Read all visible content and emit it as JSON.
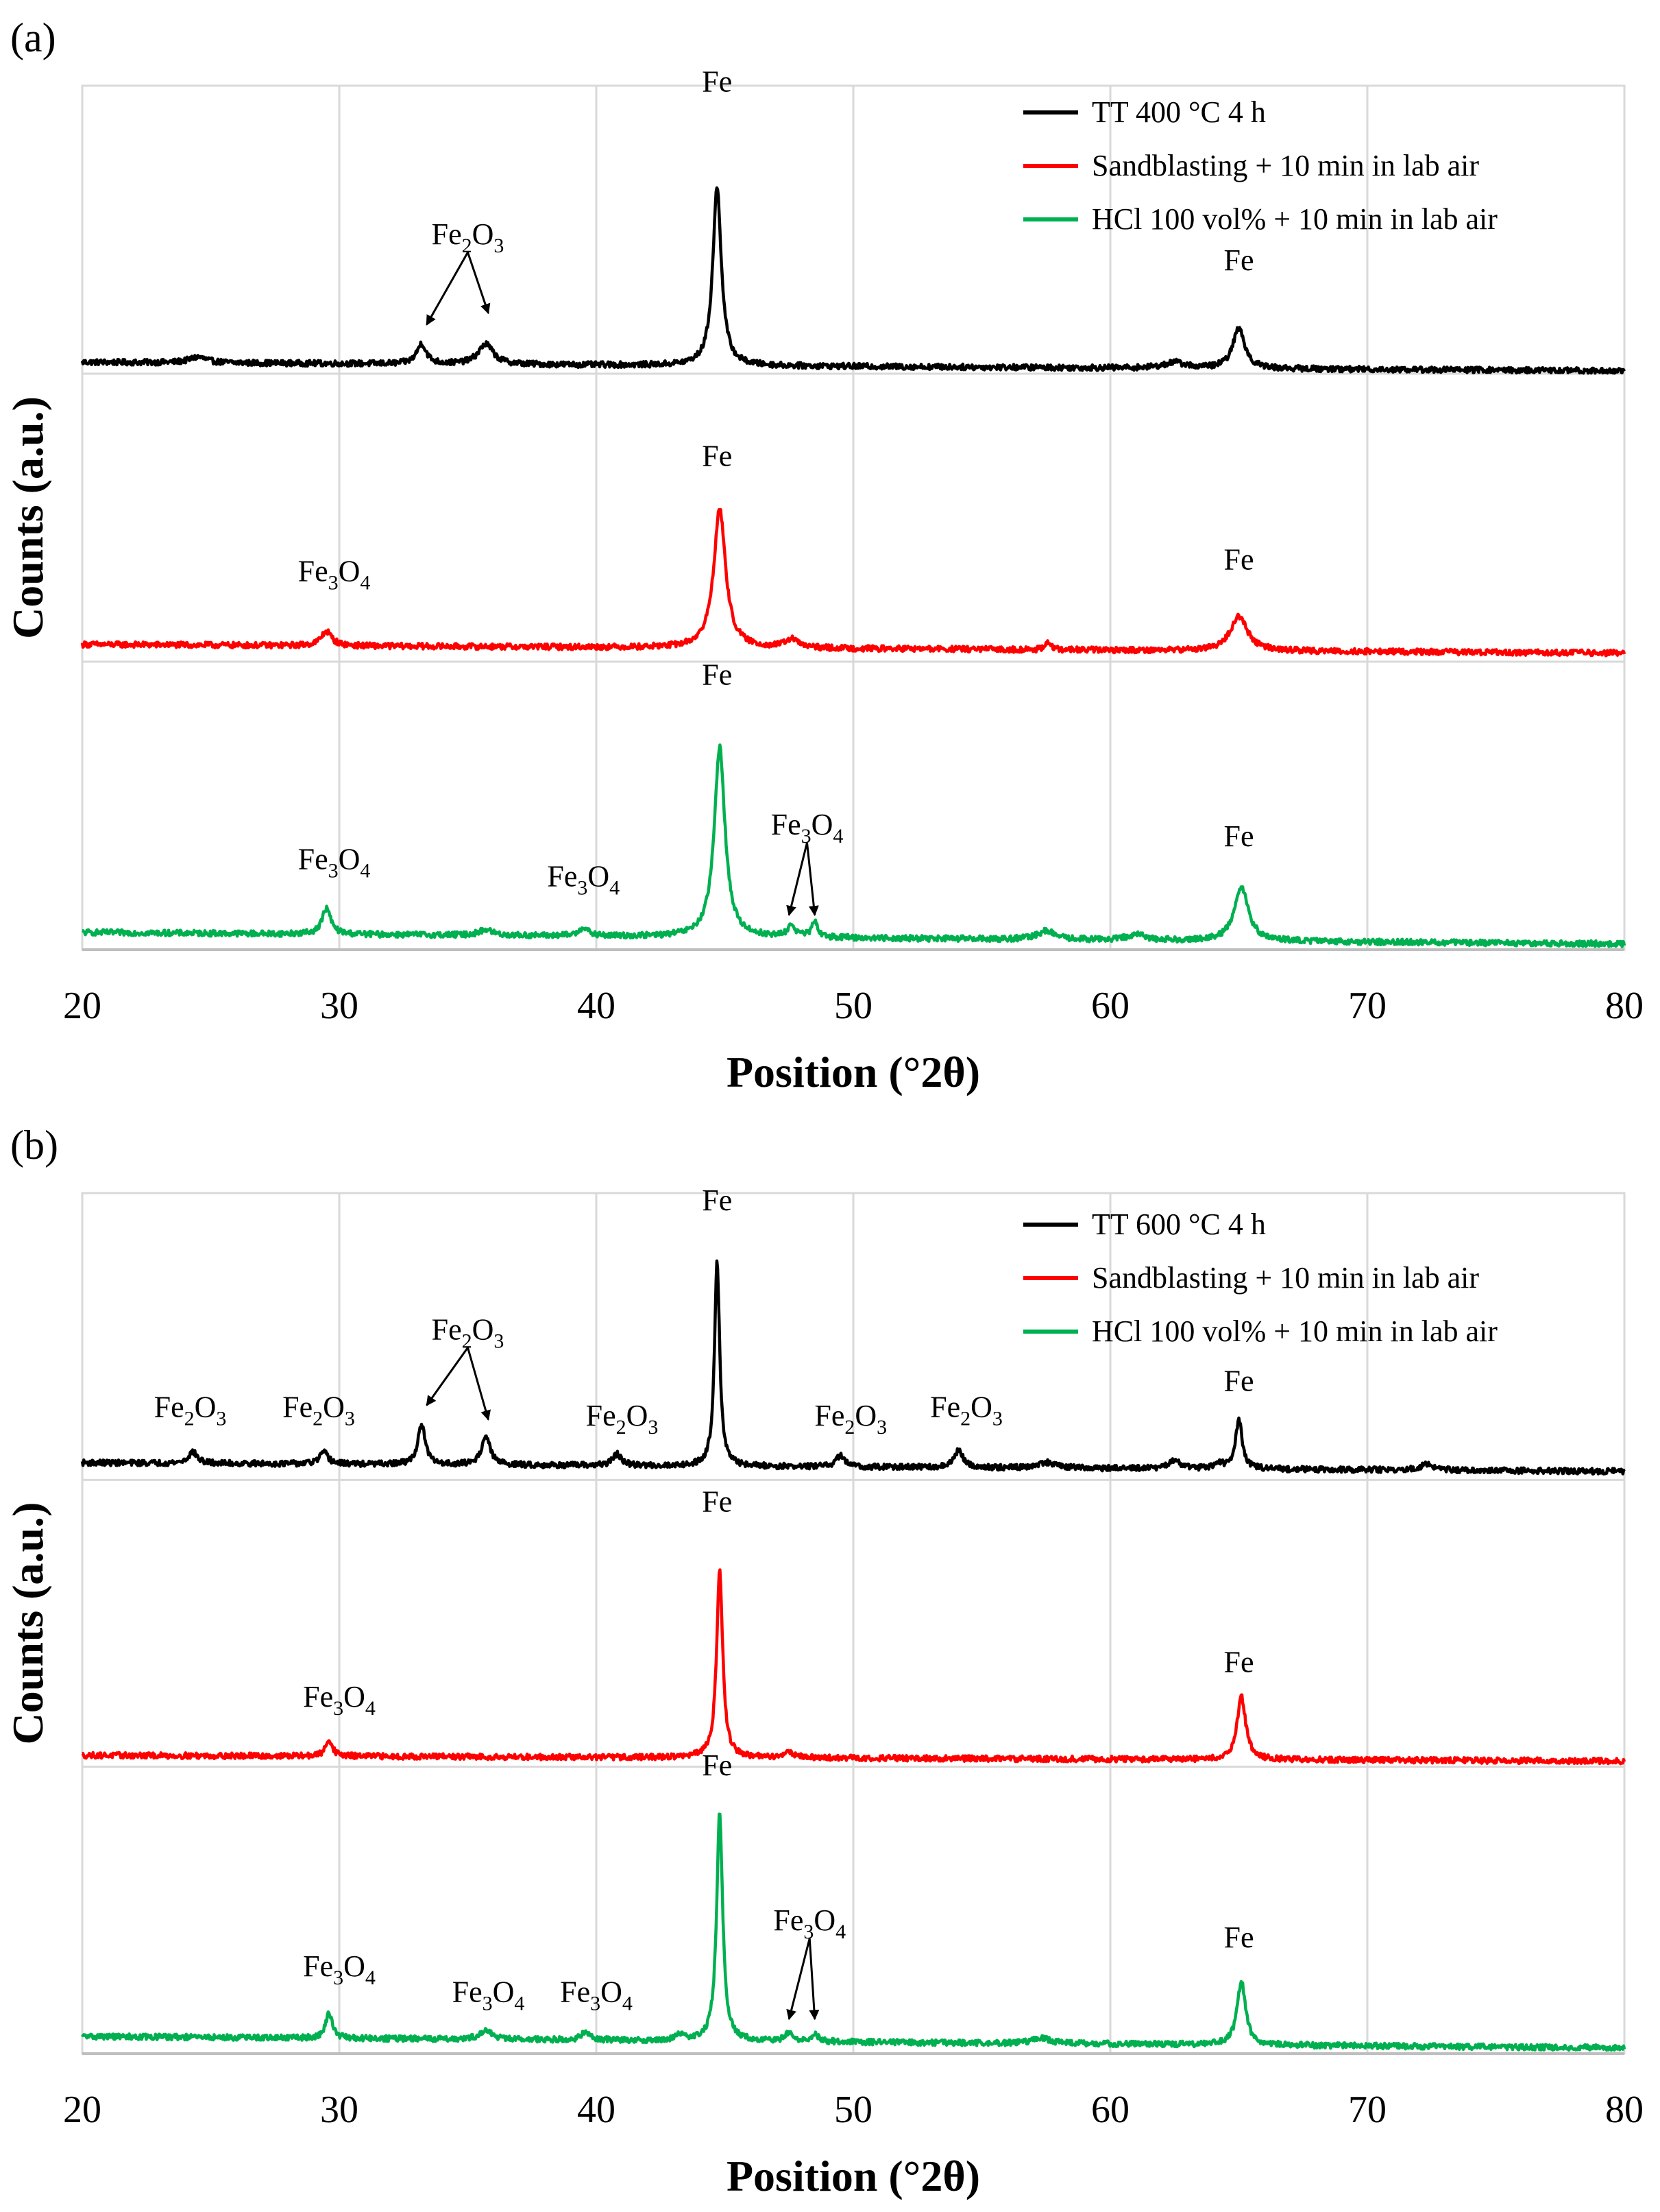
{
  "chart_data": [
    {
      "type": "line",
      "panel_label": "(a)",
      "xlabel": "Position (°2θ)",
      "ylabel": "Counts (a.u.)",
      "xlim": [
        20,
        80
      ],
      "xticks": [
        20,
        30,
        40,
        50,
        60,
        70,
        80
      ],
      "grid": true,
      "legend_position": "top-right",
      "series": [
        {
          "name": "TT 400 °C 4 h",
          "color": "#000000",
          "baseline": 0.04,
          "slope": -0.03,
          "noise": 0.02,
          "peaks": [
            [
              33.2,
              0.07,
              0.22
            ],
            [
              35.7,
              0.07,
              0.35
            ],
            [
              24.5,
              0.02,
              0.4
            ],
            [
              44.7,
              0.62,
              0.2
            ],
            [
              65.0,
              0.14,
              0.28
            ],
            [
              62.5,
              0.02,
              0.5
            ]
          ]
        },
        {
          "name": "Sandblasting + 10 min in lab air",
          "color": "#ff0000",
          "baseline": 0.06,
          "slope": -0.03,
          "noise": 0.02,
          "peaks": [
            [
              29.5,
              0.05,
              0.25
            ],
            [
              44.8,
              0.48,
              0.28
            ],
            [
              47.6,
              0.03,
              0.3
            ],
            [
              57.6,
              0.03,
              0.1
            ],
            [
              65.0,
              0.12,
              0.4
            ]
          ]
        },
        {
          "name": "HCl 100 vol% + 10 min in lab air",
          "color": "#00b050",
          "baseline": 0.06,
          "slope": -0.04,
          "noise": 0.02,
          "peaks": [
            [
              29.5,
              0.09,
              0.2
            ],
            [
              35.7,
              0.02,
              0.3
            ],
            [
              39.5,
              0.03,
              0.2
            ],
            [
              44.8,
              0.66,
              0.25
            ],
            [
              47.6,
              0.04,
              0.18
            ],
            [
              48.5,
              0.05,
              0.15
            ],
            [
              57.5,
              0.03,
              0.4
            ],
            [
              61.0,
              0.02,
              0.4
            ],
            [
              65.1,
              0.19,
              0.32
            ]
          ]
        }
      ],
      "annotations": [
        {
          "band": 0,
          "x": 44.7,
          "y": 0.98,
          "base": "Fe"
        },
        {
          "band": 0,
          "x": 65.0,
          "y": 0.36,
          "base": "Fe"
        },
        {
          "band": 0,
          "x": 35.0,
          "y": 0.45,
          "base": "Fe",
          "sub": "2",
          "base2": "O",
          "sub2": "3",
          "arrows": [
            [
              33.4,
              0.17
            ],
            [
              35.8,
              0.21
            ]
          ]
        },
        {
          "band": 1,
          "x": 44.7,
          "y": 0.68,
          "base": "Fe"
        },
        {
          "band": 1,
          "x": 65.0,
          "y": 0.32,
          "base": "Fe"
        },
        {
          "band": 1,
          "x": 29.8,
          "y": 0.28,
          "base": "Fe",
          "sub": "3",
          "base2": "O",
          "sub2": "4"
        },
        {
          "band": 2,
          "x": 44.7,
          "y": 0.92,
          "base": "Fe"
        },
        {
          "band": 2,
          "x": 65.0,
          "y": 0.36,
          "base": "Fe"
        },
        {
          "band": 2,
          "x": 29.8,
          "y": 0.28,
          "base": "Fe",
          "sub": "3",
          "base2": "O",
          "sub2": "4"
        },
        {
          "band": 2,
          "x": 39.5,
          "y": 0.22,
          "base": "Fe",
          "sub": "3",
          "base2": "O",
          "sub2": "4"
        },
        {
          "band": 2,
          "x": 48.2,
          "y": 0.4,
          "base": "Fe",
          "sub": "3",
          "base2": "O",
          "sub2": "4",
          "arrows": [
            [
              47.5,
              0.12
            ],
            [
              48.5,
              0.12
            ]
          ]
        }
      ]
    },
    {
      "type": "line",
      "panel_label": "(b)",
      "xlabel": "Position (°2θ)",
      "ylabel": "Counts (a.u.)",
      "xlim": [
        20,
        80
      ],
      "xticks": [
        20,
        30,
        40,
        50,
        60,
        70,
        80
      ],
      "grid": true,
      "legend_position": "top-right",
      "series": [
        {
          "name": "TT 600 °C 4 h",
          "color": "#000000",
          "baseline": 0.06,
          "slope": -0.03,
          "noise": 0.02,
          "peaks": [
            [
              24.3,
              0.04,
              0.2
            ],
            [
              29.4,
              0.04,
              0.2
            ],
            [
              33.2,
              0.14,
              0.17
            ],
            [
              35.7,
              0.1,
              0.2
            ],
            [
              40.8,
              0.04,
              0.2
            ],
            [
              44.7,
              0.72,
              0.12
            ],
            [
              49.5,
              0.04,
              0.2
            ],
            [
              54.1,
              0.06,
              0.2
            ],
            [
              57.5,
              0.02,
              0.4
            ],
            [
              62.5,
              0.03,
              0.25
            ],
            [
              64.2,
              0.02,
              0.2
            ],
            [
              65.0,
              0.17,
              0.16
            ],
            [
              72.3,
              0.02,
              0.3
            ]
          ]
        },
        {
          "name": "Sandblasting + 10 min in lab air",
          "color": "#ff0000",
          "baseline": 0.04,
          "slope": -0.02,
          "noise": 0.02,
          "peaks": [
            [
              29.6,
              0.06,
              0.15
            ],
            [
              44.8,
              0.66,
              0.14
            ],
            [
              47.5,
              0.02,
              0.25
            ],
            [
              65.1,
              0.22,
              0.2
            ]
          ]
        },
        {
          "name": "HCl 100 vol% + 10 min in lab air",
          "color": "#00b050",
          "baseline": 0.06,
          "slope": -0.04,
          "noise": 0.02,
          "peaks": [
            [
              29.6,
              0.09,
              0.15
            ],
            [
              35.7,
              0.03,
              0.3
            ],
            [
              39.6,
              0.03,
              0.2
            ],
            [
              43.3,
              0.02,
              0.2
            ],
            [
              44.8,
              0.8,
              0.14
            ],
            [
              47.5,
              0.03,
              0.18
            ],
            [
              48.5,
              0.03,
              0.15
            ],
            [
              57.3,
              0.02,
              0.4
            ],
            [
              65.1,
              0.22,
              0.2
            ]
          ]
        }
      ],
      "annotations": [
        {
          "band": 0,
          "x": 44.7,
          "y": 0.94,
          "base": "Fe"
        },
        {
          "band": 0,
          "x": 65.0,
          "y": 0.31,
          "base": "Fe"
        },
        {
          "band": 0,
          "x": 24.2,
          "y": 0.22,
          "base": "Fe",
          "sub": "2",
          "base2": "O",
          "sub2": "3"
        },
        {
          "band": 0,
          "x": 29.2,
          "y": 0.22,
          "base": "Fe",
          "sub": "2",
          "base2": "O",
          "sub2": "3"
        },
        {
          "band": 0,
          "x": 35.0,
          "y": 0.49,
          "base": "Fe",
          "sub": "2",
          "base2": "O",
          "sub2": "3",
          "arrows": [
            [
              33.4,
              0.26
            ],
            [
              35.8,
              0.21
            ]
          ]
        },
        {
          "band": 0,
          "x": 41.0,
          "y": 0.19,
          "base": "Fe",
          "sub": "2",
          "base2": "O",
          "sub2": "3"
        },
        {
          "band": 0,
          "x": 49.9,
          "y": 0.19,
          "base": "Fe",
          "sub": "2",
          "base2": "O",
          "sub2": "3"
        },
        {
          "band": 0,
          "x": 54.4,
          "y": 0.22,
          "base": "Fe",
          "sub": "2",
          "base2": "O",
          "sub2": "3"
        },
        {
          "band": 1,
          "x": 44.7,
          "y": 0.89,
          "base": "Fe"
        },
        {
          "band": 1,
          "x": 65.0,
          "y": 0.33,
          "base": "Fe"
        },
        {
          "band": 1,
          "x": 30.0,
          "y": 0.21,
          "base": "Fe",
          "sub": "3",
          "base2": "O",
          "sub2": "4"
        },
        {
          "band": 2,
          "x": 44.7,
          "y": 0.97,
          "base": "Fe"
        },
        {
          "band": 2,
          "x": 65.0,
          "y": 0.37,
          "base": "Fe"
        },
        {
          "band": 2,
          "x": 30.0,
          "y": 0.27,
          "base": "Fe",
          "sub": "3",
          "base2": "O",
          "sub2": "4"
        },
        {
          "band": 2,
          "x": 35.8,
          "y": 0.18,
          "base": "Fe",
          "sub": "3",
          "base2": "O",
          "sub2": "4"
        },
        {
          "band": 2,
          "x": 40.0,
          "y": 0.18,
          "base": "Fe",
          "sub": "3",
          "base2": "O",
          "sub2": "4"
        },
        {
          "band": 2,
          "x": 48.3,
          "y": 0.43,
          "base": "Fe",
          "sub": "3",
          "base2": "O",
          "sub2": "4",
          "arrows": [
            [
              47.5,
              0.12
            ],
            [
              48.5,
              0.12
            ]
          ]
        }
      ]
    }
  ]
}
